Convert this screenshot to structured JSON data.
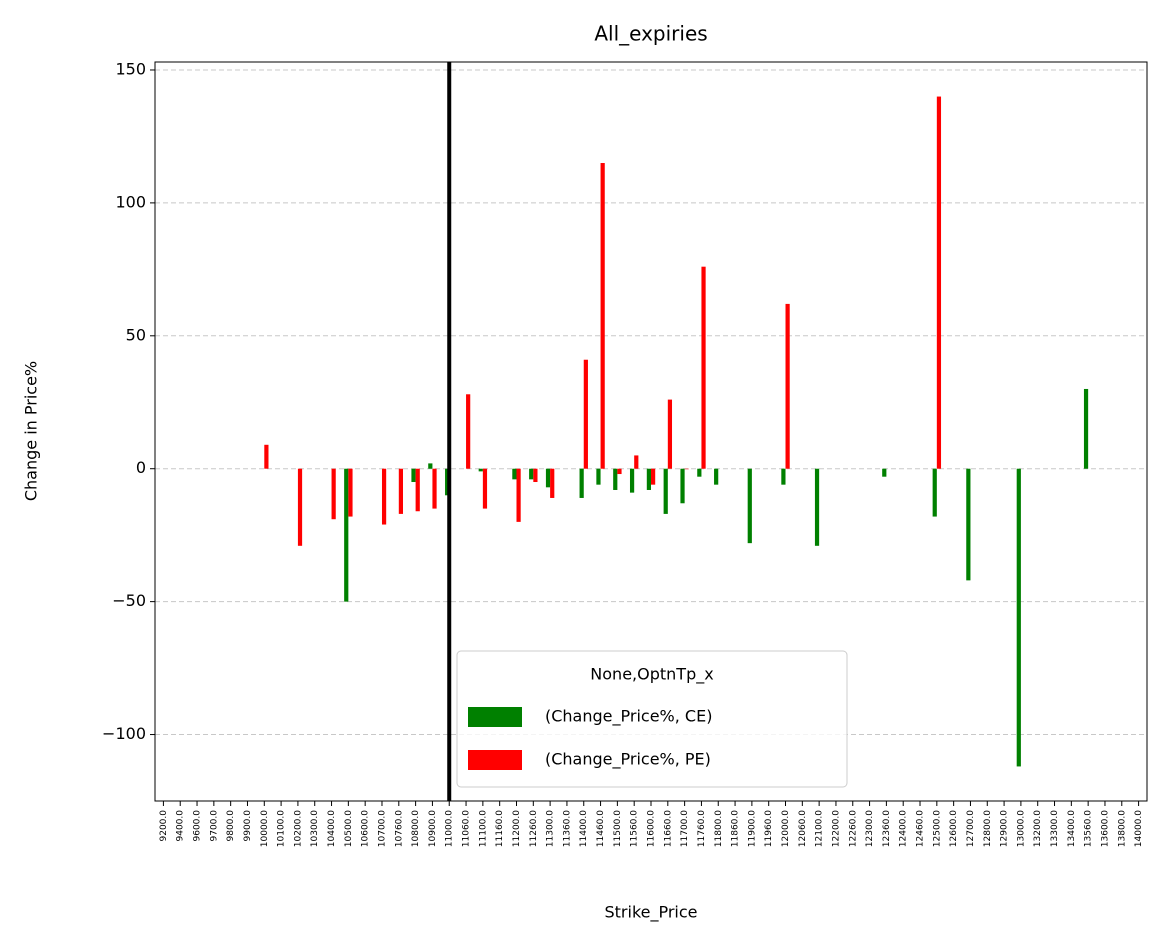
{
  "chart_data": {
    "type": "bar",
    "title": "All_expiries",
    "xlabel": "Strike_Price",
    "ylabel": "Change in Price%",
    "categories": [
      "9200.0",
      "9400.0",
      "9600.0",
      "9700.0",
      "9800.0",
      "9900.0",
      "10000.0",
      "10100.0",
      "10200.0",
      "10300.0",
      "10400.0",
      "10500.0",
      "10600.0",
      "10700.0",
      "10760.0",
      "10800.0",
      "10900.0",
      "11000.0",
      "11060.0",
      "11100.0",
      "11160.0",
      "11200.0",
      "11260.0",
      "11300.0",
      "11360.0",
      "11400.0",
      "11460.0",
      "11500.0",
      "11560.0",
      "11600.0",
      "11660.0",
      "11700.0",
      "11760.0",
      "11800.0",
      "11860.0",
      "11900.0",
      "11960.0",
      "12000.0",
      "12060.0",
      "12100.0",
      "12200.0",
      "12260.0",
      "12300.0",
      "12360.0",
      "12400.0",
      "12460.0",
      "12500.0",
      "12600.0",
      "12700.0",
      "12800.0",
      "12900.0",
      "13000.0",
      "13200.0",
      "13300.0",
      "13400.0",
      "13560.0",
      "13600.0",
      "13800.0",
      "14000.0"
    ],
    "series": [
      {
        "name": "(Change_Price%, CE)",
        "color": "#008000",
        "values": [
          null,
          null,
          null,
          null,
          null,
          null,
          null,
          null,
          null,
          null,
          null,
          -50,
          null,
          null,
          null,
          -5,
          2,
          -10,
          null,
          -1,
          null,
          -4,
          -4,
          -7,
          null,
          -11,
          -6,
          -8,
          -9,
          -8,
          -17,
          -13,
          -3,
          -6,
          null,
          -28,
          null,
          -6,
          null,
          -29,
          null,
          null,
          null,
          -3,
          null,
          null,
          -18,
          null,
          -42,
          null,
          null,
          -112,
          null,
          null,
          null,
          30,
          null,
          null,
          null
        ]
      },
      {
        "name": "(Change_Price%, PE)",
        "color": "#ff0000",
        "values": [
          null,
          null,
          null,
          null,
          null,
          null,
          9,
          null,
          -29,
          null,
          -19,
          -18,
          null,
          -21,
          -17,
          -16,
          -15,
          null,
          28,
          -15,
          null,
          -20,
          -5,
          -11,
          null,
          41,
          115,
          -2,
          5,
          -6,
          26,
          0,
          76,
          null,
          null,
          null,
          null,
          62,
          null,
          null,
          null,
          null,
          null,
          null,
          null,
          null,
          140,
          null,
          null,
          null,
          null,
          null,
          null,
          null,
          null,
          null,
          null,
          null,
          null
        ]
      }
    ],
    "legend_title": "None,OptnTp_x",
    "legend": "lower center",
    "vline": "11000.0",
    "ylim": [
      -125,
      153
    ],
    "yticks": [
      {
        "value": -100,
        "label": "−100"
      },
      {
        "value": -50,
        "label": "−50"
      },
      0,
      50,
      100,
      150
    ],
    "grid": true
  }
}
